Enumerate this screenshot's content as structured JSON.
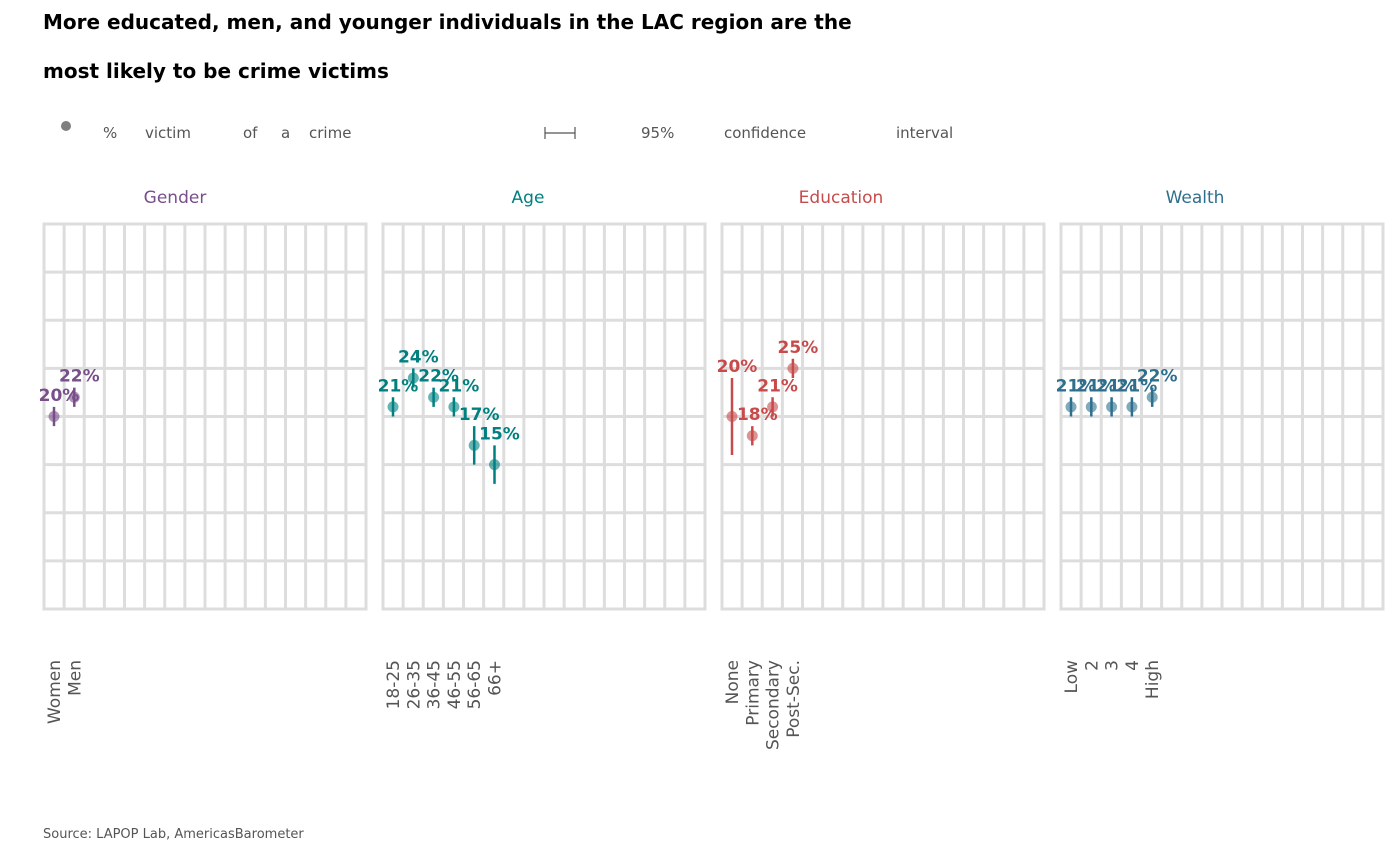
{
  "title_line1": "More educated, men, and younger individuals in the LAC region are the",
  "title_line2": "most likely to be crime victims",
  "legend": {
    "point_words": [
      "%",
      "victim",
      "of",
      "a",
      "crime"
    ],
    "ci_words": [
      "95%",
      "confidence",
      "interval"
    ]
  },
  "source": "Source: LAPOP Lab, AmericasBarometer",
  "chart_data": {
    "type": "scatter",
    "ylim": [
      0,
      40
    ],
    "grid": true,
    "panels": [
      {
        "name": "Gender",
        "color": "#784e8b",
        "categories": [
          "Women",
          "Men"
        ],
        "values": [
          20,
          22
        ],
        "ci_low": [
          19,
          21
        ],
        "ci_high": [
          21,
          23
        ],
        "labels": [
          "20%",
          "22%"
        ]
      },
      {
        "name": "Age",
        "color": "#008080",
        "categories": [
          "18-25",
          "26-35",
          "36-45",
          "46-55",
          "56-65",
          "66+"
        ],
        "values": [
          21,
          24,
          22,
          21,
          17,
          15
        ],
        "ci_low": [
          20,
          23,
          21,
          20,
          15,
          13
        ],
        "ci_high": [
          22,
          25,
          23,
          22,
          19,
          17
        ],
        "labels": [
          "21%",
          "24%",
          "22%",
          "21%",
          "17%",
          "15%"
        ]
      },
      {
        "name": "Education",
        "color": "#c74b4b",
        "categories": [
          "None",
          "Primary",
          "Secondary",
          "Post-Sec."
        ],
        "values": [
          20,
          18,
          21,
          25
        ],
        "ci_low": [
          16,
          17,
          20,
          24
        ],
        "ci_high": [
          24,
          19,
          22,
          26
        ],
        "labels": [
          "20%",
          "18%",
          "21%",
          "25%"
        ]
      },
      {
        "name": "Wealth",
        "color": "#2e6f8e",
        "categories": [
          "Low",
          "2",
          "3",
          "4",
          "High"
        ],
        "values": [
          21,
          21,
          21,
          21,
          22
        ],
        "ci_low": [
          20,
          20,
          20,
          20,
          21
        ],
        "ci_high": [
          22,
          22,
          22,
          22,
          23
        ],
        "labels": [
          "21%",
          "21%",
          "21%",
          "21%",
          "22%"
        ]
      }
    ]
  }
}
